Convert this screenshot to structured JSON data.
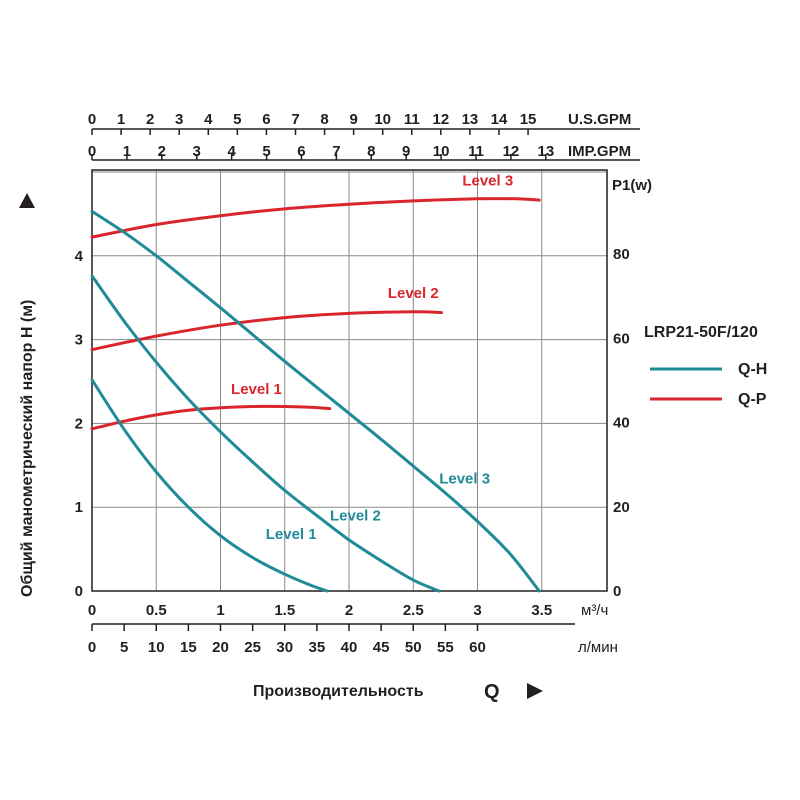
{
  "chart_data": {
    "type": "line",
    "model": "LRP21-50F/120",
    "ylabel": "Общий манометрический напор Н (м)",
    "xlabel": "Производительность",
    "xlabel_symbol": "Q",
    "y2label": "P",
    "y2label_sub": "1",
    "y2label_unit": "(w)",
    "x_unit_m3h": "м³/ч",
    "x_unit_lmin": "л/мин",
    "x_unit_usgpm": "U.S.GPM",
    "x_unit_impgpm": "IMP.GPM",
    "xlim_m3h": [
      0,
      4
    ],
    "ylim_head": [
      0,
      5
    ],
    "ylim_power": [
      0,
      100
    ],
    "grid": true,
    "x_ticks_m3h": [
      "0",
      "0.5",
      "1",
      "1.5",
      "2",
      "2.5",
      "3",
      "3.5"
    ],
    "x_ticks_lmin": [
      "0",
      "5",
      "10",
      "15",
      "20",
      "25",
      "30",
      "35",
      "40",
      "45",
      "50",
      "55",
      "60"
    ],
    "x_ticks_usgpm": [
      "0",
      "1",
      "2",
      "3",
      "4",
      "5",
      "6",
      "7",
      "8",
      "9",
      "10",
      "11",
      "12",
      "13",
      "14",
      "15"
    ],
    "x_ticks_impgpm": [
      "0",
      "1",
      "2",
      "3",
      "4",
      "5",
      "6",
      "7",
      "8",
      "9",
      "10",
      "11",
      "12",
      "13"
    ],
    "y_ticks_head": [
      "0",
      "1",
      "2",
      "3",
      "4"
    ],
    "y_ticks_power": [
      "0",
      "20",
      "40",
      "60",
      "80"
    ],
    "legend": [
      {
        "label": "Q-H",
        "color": "#1f8a98"
      },
      {
        "label": "Q-P",
        "color": "#d9262c"
      }
    ],
    "legend_position": "right",
    "series_qh": [
      {
        "name": "Level 1",
        "color": "#1f8a98",
        "points": [
          [
            0,
            2.52
          ],
          [
            0.25,
            1.93
          ],
          [
            0.5,
            1.42
          ],
          [
            0.75,
            1.0
          ],
          [
            1.0,
            0.66
          ],
          [
            1.25,
            0.4
          ],
          [
            1.5,
            0.2
          ],
          [
            1.7,
            0.07
          ],
          [
            1.83,
            0.0
          ]
        ]
      },
      {
        "name": "Level 2",
        "color": "#1f8a98",
        "points": [
          [
            0,
            3.76
          ],
          [
            0.25,
            3.22
          ],
          [
            0.5,
            2.73
          ],
          [
            0.75,
            2.29
          ],
          [
            1.0,
            1.9
          ],
          [
            1.25,
            1.54
          ],
          [
            1.5,
            1.2
          ],
          [
            1.75,
            0.9
          ],
          [
            2.0,
            0.61
          ],
          [
            2.25,
            0.36
          ],
          [
            2.5,
            0.13
          ],
          [
            2.7,
            0.0
          ]
        ]
      },
      {
        "name": "Level 3",
        "color": "#1f8a98",
        "points": [
          [
            0,
            4.53
          ],
          [
            0.25,
            4.28
          ],
          [
            0.5,
            4.0
          ],
          [
            0.75,
            3.69
          ],
          [
            1.0,
            3.38
          ],
          [
            1.25,
            3.06
          ],
          [
            1.5,
            2.74
          ],
          [
            1.75,
            2.43
          ],
          [
            2.0,
            2.12
          ],
          [
            2.25,
            1.81
          ],
          [
            2.5,
            1.49
          ],
          [
            2.75,
            1.17
          ],
          [
            3.0,
            0.83
          ],
          [
            3.25,
            0.45
          ],
          [
            3.48,
            0.0
          ]
        ]
      }
    ],
    "series_qp": [
      {
        "name": "Level 1",
        "color": "#d9262c",
        "points": [
          [
            0,
            38.5
          ],
          [
            0.25,
            40.3
          ],
          [
            0.5,
            41.8
          ],
          [
            0.75,
            42.9
          ],
          [
            1.0,
            43.5
          ],
          [
            1.25,
            43.8
          ],
          [
            1.5,
            43.8
          ],
          [
            1.7,
            43.6
          ],
          [
            1.85,
            43.3
          ]
        ]
      },
      {
        "name": "Level 2",
        "color": "#d9262c",
        "points": [
          [
            0,
            57.3
          ],
          [
            0.5,
            60.5
          ],
          [
            1.0,
            63.1
          ],
          [
            1.5,
            64.9
          ],
          [
            2.0,
            65.9
          ],
          [
            2.5,
            66.3
          ],
          [
            2.72,
            66.1
          ]
        ]
      },
      {
        "name": "Level 3",
        "color": "#d9262c",
        "points": [
          [
            0,
            84.0
          ],
          [
            0.5,
            87.0
          ],
          [
            1.0,
            89.1
          ],
          [
            1.5,
            90.7
          ],
          [
            2.0,
            91.8
          ],
          [
            2.5,
            92.6
          ],
          [
            3.0,
            93.1
          ],
          [
            3.3,
            93.1
          ],
          [
            3.48,
            92.8
          ]
        ]
      }
    ],
    "curve_labels": [
      {
        "text": "Level 1",
        "color": "#d9262c",
        "at": [
          1.28,
          46.8
        ]
      },
      {
        "text": "Level 2",
        "color": "#d9262c",
        "at": [
          2.5,
          69.5
        ]
      },
      {
        "text": "Level 3",
        "color": "#d9262c",
        "at": [
          3.08,
          96.3
        ]
      },
      {
        "text": "Level 1",
        "color": "#1f8a98",
        "at": [
          1.55,
          0.62
        ]
      },
      {
        "text": "Level 2",
        "color": "#1f8a98",
        "at": [
          2.05,
          0.84
        ]
      },
      {
        "text": "Level 3",
        "color": "#1f8a98",
        "at": [
          2.9,
          1.28
        ]
      }
    ]
  }
}
